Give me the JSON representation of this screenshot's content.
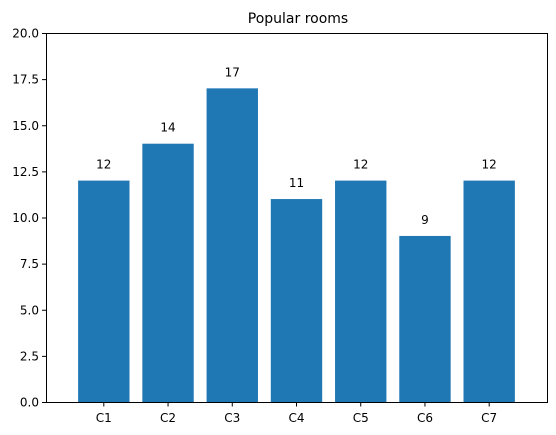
{
  "chart_data": {
    "type": "bar",
    "title": "Popular rooms",
    "xlabel": "",
    "ylabel": "",
    "categories": [
      "C1",
      "C2",
      "C3",
      "C4",
      "C5",
      "C6",
      "C7"
    ],
    "values": [
      12,
      14,
      17,
      11,
      12,
      9,
      12
    ],
    "data_labels": [
      "12",
      "14",
      "17",
      "11",
      "12",
      "9",
      "12"
    ],
    "ylim": [
      0,
      20
    ],
    "yticks": [
      0,
      2.5,
      5,
      7.5,
      10,
      12.5,
      15,
      17.5,
      20
    ],
    "ytick_labels": [
      "0.0",
      "2.5",
      "5.0",
      "7.5",
      "10.0",
      "12.5",
      "15.0",
      "17.5",
      "20.0"
    ],
    "grid": false,
    "legend": "none",
    "bar_color": "#1f77b4"
  }
}
